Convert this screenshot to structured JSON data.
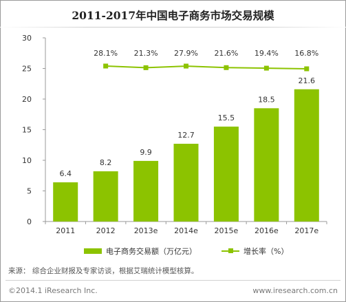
{
  "title": "2011-2017年中国电子商务市场交易规模",
  "chart_data": {
    "type": "bar",
    "categories": [
      "2011",
      "2012",
      "2013e",
      "2014e",
      "2015e",
      "2016e",
      "2017e"
    ],
    "series": [
      {
        "name": "电子商务交易额（万亿元）",
        "type": "bar",
        "values": [
          6.4,
          8.2,
          9.9,
          12.7,
          15.5,
          18.5,
          21.6
        ],
        "labels": [
          "6.4",
          "8.2",
          "9.9",
          "12.7",
          "15.5",
          "18.5",
          "21.6"
        ],
        "axis": "left"
      },
      {
        "name": "增长率（%）",
        "type": "line",
        "values": [
          null,
          28.1,
          21.3,
          27.9,
          21.6,
          19.4,
          16.8
        ],
        "labels": [
          "",
          "28.1%",
          "21.3%",
          "27.9%",
          "21.6%",
          "19.4%",
          "16.8%"
        ],
        "axis": "secondary (unlabeled)"
      }
    ],
    "yticks": [
      "0",
      "5",
      "10",
      "15",
      "20",
      "25",
      "30"
    ],
    "ylim": [
      0,
      30
    ],
    "grid": false,
    "legend": "bottom",
    "colors": {
      "bar": "#8cc300",
      "line": "#8cc300",
      "axis": "#999999",
      "text": "#333333"
    }
  },
  "legend": {
    "bar_label": "电子商务交易额（万亿元）",
    "line_label": "增长率（%）"
  },
  "footer": {
    "source": "来源：  综合企业财报及专家访谈，根据艾瑞统计模型核算。",
    "copyright": "©2014.1 iResearch Inc.",
    "website": "www.iresearch.com.cn"
  }
}
